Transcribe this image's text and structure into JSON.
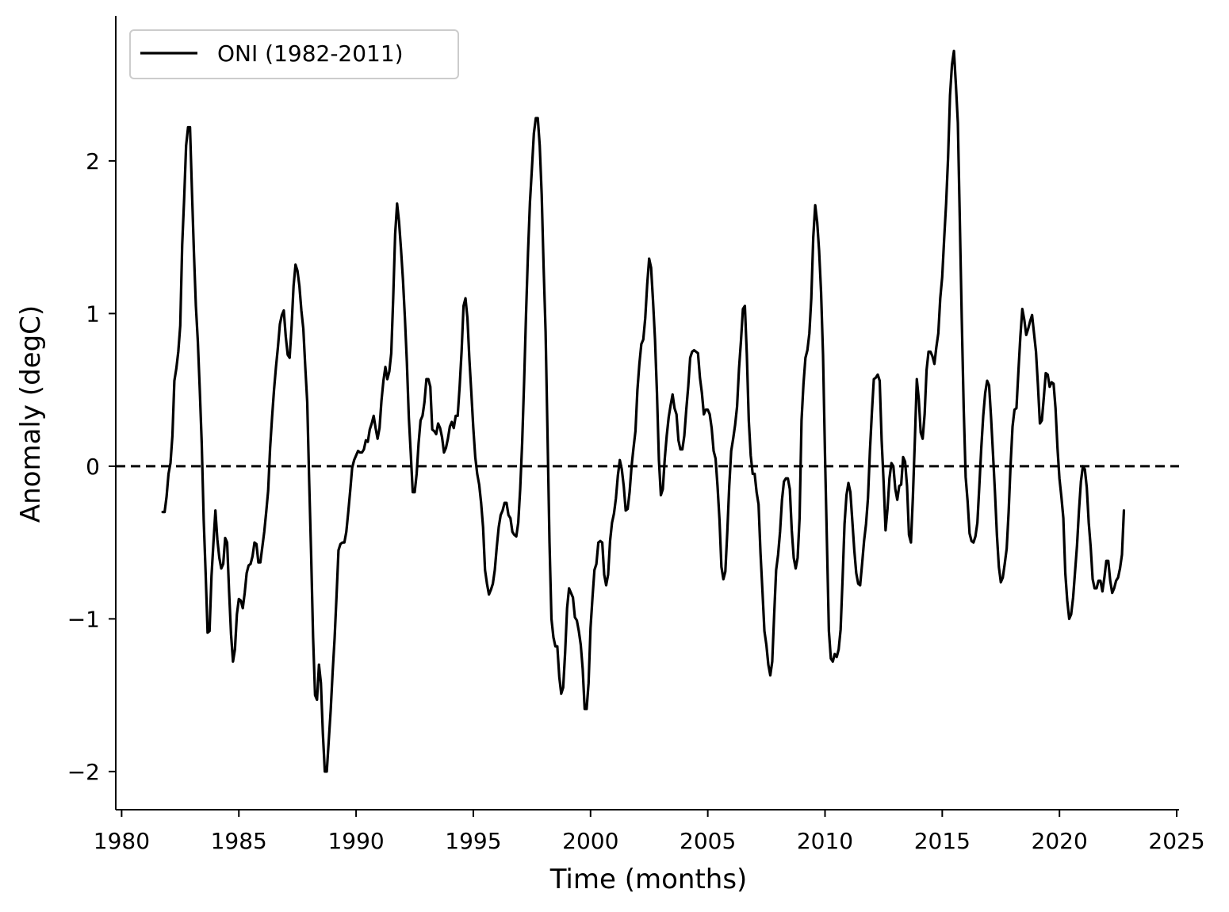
{
  "chart_data": {
    "type": "line",
    "title": "",
    "xlabel": "Time (months)",
    "ylabel": "Anomaly (degC)",
    "xlim": [
      1979.75,
      2025.1
    ],
    "ylim": [
      -2.25,
      2.95
    ],
    "x_ticks": [
      1980,
      1985,
      1990,
      1995,
      2000,
      2005,
      2010,
      2015,
      2020,
      2025
    ],
    "x_tick_labels": [
      "1980",
      "1985",
      "1990",
      "1995",
      "2000",
      "2005",
      "2010",
      "2015",
      "2020",
      "2025"
    ],
    "y_ticks": [
      -2,
      -1,
      0,
      1,
      2
    ],
    "y_tick_labels": [
      "−2",
      "−1",
      "0",
      "1",
      "2"
    ],
    "reference_line": {
      "y": 0,
      "style": "dashed",
      "color": "#000000"
    },
    "legend": {
      "position": "top-left",
      "entries": [
        "ONI (1982-2011)"
      ]
    },
    "grid": false,
    "series": [
      {
        "name": "ONI (1982-2011)",
        "color": "#000000",
        "x_start": 1981.75,
        "x_step": 0.08333,
        "values": [
          -0.3,
          -0.3,
          -0.2,
          -0.05,
          0.02,
          0.2,
          0.56,
          0.64,
          0.75,
          0.92,
          1.45,
          1.75,
          2.1,
          2.22,
          2.22,
          1.8,
          1.4,
          1.05,
          0.82,
          0.5,
          0.15,
          -0.35,
          -0.7,
          -1.09,
          -1.08,
          -0.72,
          -0.5,
          -0.29,
          -0.48,
          -0.6,
          -0.67,
          -0.64,
          -0.47,
          -0.5,
          -0.82,
          -1.1,
          -1.28,
          -1.2,
          -0.97,
          -0.87,
          -0.88,
          -0.93,
          -0.83,
          -0.7,
          -0.65,
          -0.64,
          -0.59,
          -0.5,
          -0.51,
          -0.63,
          -0.63,
          -0.53,
          -0.43,
          -0.3,
          -0.16,
          0.12,
          0.32,
          0.5,
          0.65,
          0.78,
          0.93,
          0.99,
          1.02,
          0.85,
          0.73,
          0.71,
          0.92,
          1.18,
          1.32,
          1.28,
          1.18,
          1.02,
          0.9,
          0.65,
          0.42,
          -0.1,
          -0.58,
          -1.12,
          -1.5,
          -1.53,
          -1.3,
          -1.42,
          -1.75,
          -2.0,
          -2.0,
          -1.8,
          -1.6,
          -1.35,
          -1.13,
          -0.85,
          -0.55,
          -0.51,
          -0.5,
          -0.5,
          -0.43,
          -0.3,
          -0.16,
          -0.01,
          0.04,
          0.07,
          0.1,
          0.09,
          0.09,
          0.11,
          0.17,
          0.16,
          0.24,
          0.28,
          0.33,
          0.25,
          0.18,
          0.25,
          0.43,
          0.56,
          0.65,
          0.57,
          0.62,
          0.74,
          1.1,
          1.52,
          1.72,
          1.6,
          1.42,
          1.22,
          0.97,
          0.68,
          0.32,
          0.08,
          -0.17,
          -0.17,
          -0.05,
          0.15,
          0.3,
          0.33,
          0.42,
          0.57,
          0.57,
          0.52,
          0.24,
          0.23,
          0.21,
          0.28,
          0.25,
          0.19,
          0.09,
          0.12,
          0.18,
          0.26,
          0.29,
          0.25,
          0.33,
          0.33,
          0.52,
          0.75,
          1.05,
          1.1,
          0.97,
          0.7,
          0.48,
          0.25,
          0.06,
          -0.05,
          -0.12,
          -0.24,
          -0.4,
          -0.68,
          -0.77,
          -0.84,
          -0.81,
          -0.77,
          -0.68,
          -0.53,
          -0.4,
          -0.32,
          -0.29,
          -0.24,
          -0.24,
          -0.32,
          -0.34,
          -0.43,
          -0.45,
          -0.46,
          -0.37,
          -0.15,
          0.15,
          0.55,
          1.0,
          1.4,
          1.73,
          1.95,
          2.18,
          2.28,
          2.28,
          2.1,
          1.78,
          1.3,
          0.88,
          0.2,
          -0.5,
          -1.0,
          -1.12,
          -1.18,
          -1.18,
          -1.38,
          -1.49,
          -1.45,
          -1.22,
          -0.93,
          -0.8,
          -0.83,
          -0.86,
          -0.99,
          -1.01,
          -1.08,
          -1.17,
          -1.33,
          -1.59,
          -1.59,
          -1.42,
          -1.06,
          -0.86,
          -0.68,
          -0.64,
          -0.5,
          -0.49,
          -0.5,
          -0.71,
          -0.78,
          -0.71,
          -0.49,
          -0.37,
          -0.31,
          -0.21,
          -0.06,
          0.04,
          -0.02,
          -0.13,
          -0.29,
          -0.28,
          -0.17,
          0.0,
          0.12,
          0.23,
          0.5,
          0.67,
          0.8,
          0.83,
          0.97,
          1.19,
          1.36,
          1.3,
          1.08,
          0.83,
          0.48,
          0.04,
          -0.19,
          -0.15,
          0.05,
          0.2,
          0.32,
          0.4,
          0.47,
          0.38,
          0.34,
          0.17,
          0.11,
          0.11,
          0.2,
          0.37,
          0.52,
          0.71,
          0.75,
          0.76,
          0.75,
          0.74,
          0.58,
          0.48,
          0.34,
          0.37,
          0.37,
          0.34,
          0.25,
          0.1,
          0.05,
          -0.13,
          -0.35,
          -0.66,
          -0.74,
          -0.69,
          -0.43,
          -0.13,
          0.1,
          0.18,
          0.27,
          0.39,
          0.64,
          0.82,
          1.03,
          1.05,
          0.73,
          0.3,
          0.07,
          -0.05,
          -0.05,
          -0.17,
          -0.25,
          -0.57,
          -0.82,
          -1.08,
          -1.17,
          -1.3,
          -1.37,
          -1.28,
          -0.97,
          -0.68,
          -0.58,
          -0.43,
          -0.22,
          -0.1,
          -0.08,
          -0.08,
          -0.15,
          -0.42,
          -0.6,
          -0.67,
          -0.6,
          -0.34,
          0.3,
          0.54,
          0.71,
          0.76,
          0.87,
          1.1,
          1.5,
          1.71,
          1.6,
          1.41,
          1.14,
          0.73,
          0.08,
          -0.5,
          -1.08,
          -1.26,
          -1.28,
          -1.23,
          -1.25,
          -1.2,
          -1.07,
          -0.74,
          -0.38,
          -0.19,
          -0.11,
          -0.17,
          -0.36,
          -0.55,
          -0.7,
          -0.77,
          -0.78,
          -0.64,
          -0.49,
          -0.38,
          -0.21,
          0.1,
          0.35,
          0.57,
          0.58,
          0.6,
          0.56,
          0.17,
          -0.1,
          -0.42,
          -0.28,
          -0.08,
          0.02,
          0.0,
          -0.15,
          -0.22,
          -0.13,
          -0.12,
          0.06,
          0.03,
          -0.13,
          -0.45,
          -0.5,
          -0.2,
          0.17,
          0.57,
          0.44,
          0.22,
          0.18,
          0.34,
          0.63,
          0.75,
          0.75,
          0.72,
          0.67,
          0.78,
          0.87,
          1.1,
          1.24,
          1.49,
          1.72,
          2.02,
          2.43,
          2.63,
          2.72,
          2.5,
          2.25,
          1.62,
          0.97,
          0.38,
          -0.07,
          -0.23,
          -0.44,
          -0.49,
          -0.5,
          -0.46,
          -0.37,
          -0.13,
          0.12,
          0.33,
          0.48,
          0.56,
          0.53,
          0.32,
          0.08,
          -0.17,
          -0.45,
          -0.66,
          -0.76,
          -0.73,
          -0.64,
          -0.54,
          -0.3,
          0.01,
          0.26,
          0.37,
          0.38,
          0.62,
          0.85,
          1.03,
          0.96,
          0.86,
          0.9,
          0.95,
          0.99,
          0.87,
          0.75,
          0.53,
          0.28,
          0.3,
          0.45,
          0.61,
          0.6,
          0.52,
          0.55,
          0.54,
          0.38,
          0.12,
          -0.08,
          -0.2,
          -0.34,
          -0.7,
          -0.88,
          -1.0,
          -0.97,
          -0.86,
          -0.69,
          -0.52,
          -0.29,
          -0.1,
          0.0,
          -0.02,
          -0.14,
          -0.37,
          -0.53,
          -0.74,
          -0.8,
          -0.8,
          -0.75,
          -0.75,
          -0.82,
          -0.73,
          -0.62,
          -0.62,
          -0.75,
          -0.83,
          -0.8,
          -0.75,
          -0.73,
          -0.67,
          -0.58,
          -0.29
        ]
      }
    ]
  }
}
